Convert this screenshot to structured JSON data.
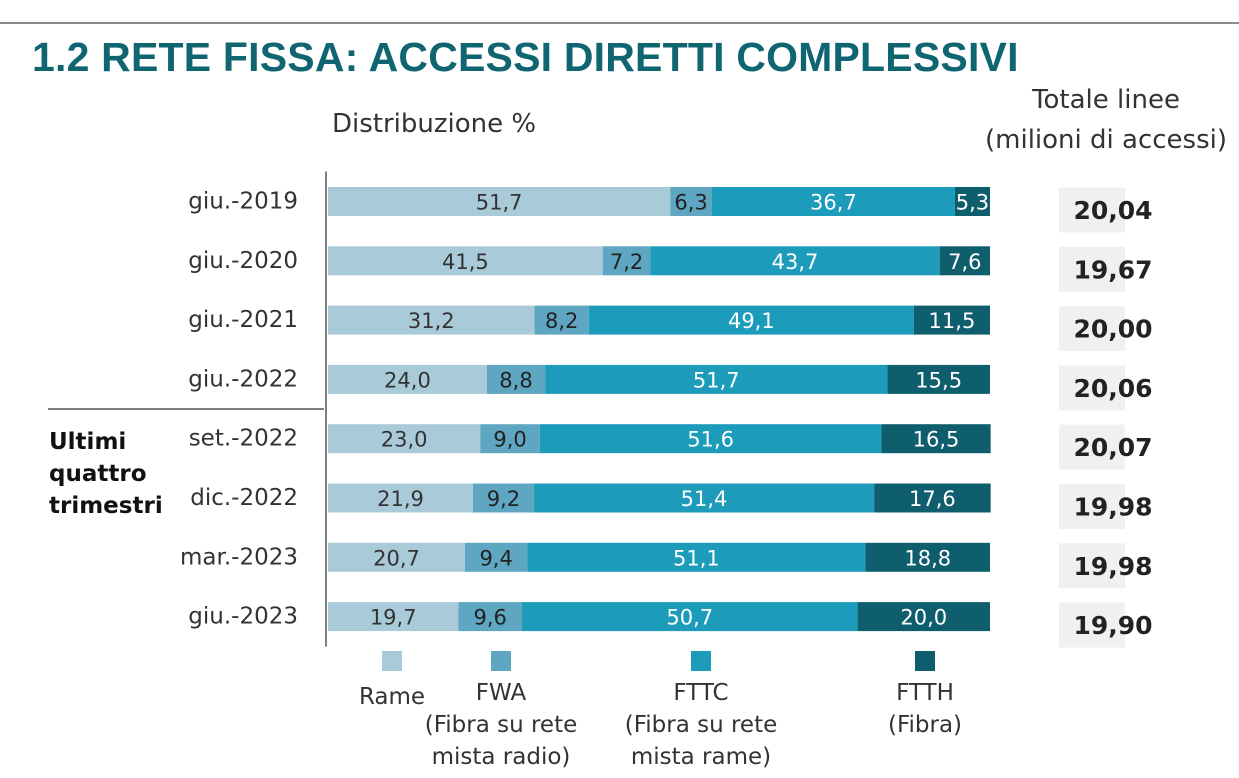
{
  "header": {
    "title": "1.2 RETE FISSA: ACCESSI DIRETTI COMPLESSIVI",
    "subtitle": "Distribuzione %",
    "totals_title_line1": "Totale linee",
    "totals_title_line2": "(milioni di accessi)"
  },
  "group_label": [
    "Ultimi",
    "quattro",
    "trimestri"
  ],
  "chart_data": {
    "type": "bar",
    "orientation": "horizontal",
    "stacked": true,
    "title": "1.2 RETE FISSA: ACCESSI DIRETTI COMPLESSIVI",
    "subtitle": "Distribuzione %",
    "categories": [
      "giu.-2019",
      "giu.-2020",
      "giu.-2021",
      "giu.-2022",
      "set.-2022",
      "dic.-2022",
      "mar.-2023",
      "giu.-2023"
    ],
    "series": [
      {
        "name": "Rame",
        "color": "#a9cad9",
        "text_color": "#333333",
        "values": [
          51.7,
          41.5,
          31.2,
          24.0,
          23.0,
          21.9,
          20.7,
          19.7
        ],
        "labels": [
          "51,7",
          "41,5",
          "31,2",
          "24,0",
          "23,0",
          "21,9",
          "20,7",
          "19,7"
        ]
      },
      {
        "name": "FWA",
        "color": "#5ea6c1",
        "text_color": "#222222",
        "values": [
          6.3,
          7.2,
          8.2,
          8.8,
          9.0,
          9.2,
          9.4,
          9.6
        ],
        "labels": [
          "6,3",
          "7,2",
          "8,2",
          "8,8",
          "9,0",
          "9,2",
          "9,4",
          "9,6"
        ]
      },
      {
        "name": "FTTC",
        "color": "#1c9bba",
        "text_color": "#ffffff",
        "values": [
          36.7,
          43.7,
          49.1,
          51.7,
          51.6,
          51.4,
          51.1,
          50.7
        ],
        "labels": [
          "36,7",
          "43,7",
          "49,1",
          "51,7",
          "51,6",
          "51,4",
          "51,1",
          "50,7"
        ]
      },
      {
        "name": "FTTH",
        "color": "#0f5e6e",
        "text_color": "#ffffff",
        "values": [
          5.3,
          7.6,
          11.5,
          15.5,
          16.5,
          17.6,
          18.8,
          20.0
        ],
        "labels": [
          "5,3",
          "7,6",
          "11,5",
          "15,5",
          "16,5",
          "17,6",
          "18,8",
          "20,0"
        ]
      }
    ],
    "totals": {
      "values": [
        20.04,
        19.67,
        20.0,
        20.06,
        20.07,
        19.98,
        19.98,
        19.9
      ],
      "labels": [
        "20,04",
        "19,67",
        "20,00",
        "20,06",
        "20,07",
        "19,98",
        "19,98",
        "19,90"
      ]
    },
    "xlim": [
      0,
      100
    ],
    "legend": {
      "placement": "bottom",
      "items": [
        {
          "lines": [
            "Rame"
          ]
        },
        {
          "lines": [
            "FWA",
            "(Fibra su rete",
            "mista radio)"
          ]
        },
        {
          "lines": [
            "FTTC",
            "(Fibra su rete",
            "mista rame)"
          ]
        },
        {
          "lines": [
            "FTTH",
            "(Fibra)"
          ]
        }
      ]
    }
  }
}
